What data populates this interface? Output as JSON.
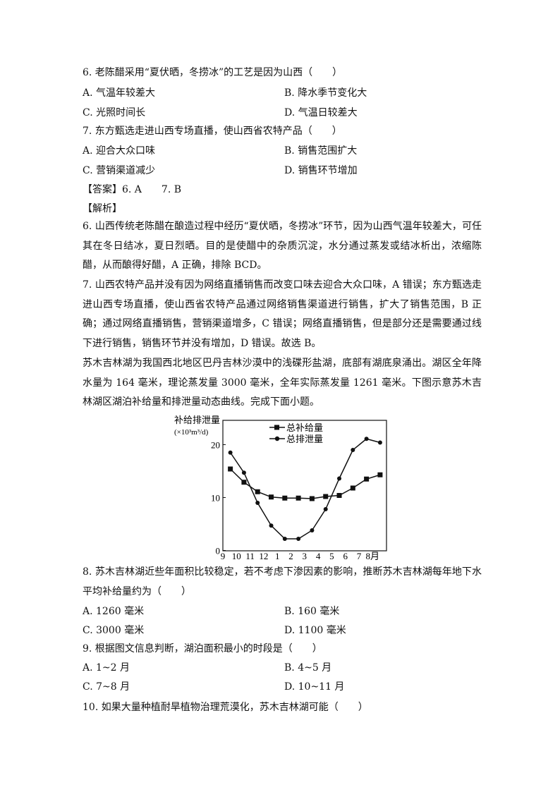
{
  "q6": {
    "stem": "6. 老陈醋采用“夏伏晒，冬捞冰”的工艺是因为山西（　　）",
    "A": "A.  气温年较差大",
    "B": "B.  降水季节变化大",
    "C": "C.  光照时间长",
    "D": "D.  气温日较差大"
  },
  "q7": {
    "stem": "7. 东方甄选走进山西专场直播，使山西省农特产品（　　）",
    "A": "A.  迎合大众口味",
    "B": "B.  销售范围扩大",
    "C": "C.  营销渠道减少",
    "D": "D.  销售环节增加"
  },
  "answer": "【答案】6. A　　7. B",
  "analysis_title": "【解析】",
  "analysis6": "6. 山西传统老陈醋在酿造过程中经历“夏伏晒，冬捞冰”环节，因为山西气温年较差大，可任其在冬日结冰，夏日烈晒。目的是使醋中的杂质沉淀，水分通过蒸发或结冰析出，浓缩陈醋，从而酿得好醋，A 正确，排除 BCD。",
  "analysis7": "7. 山西农特产品并没有因为网络直播销售而改变口味去迎合大众口味，A 错误；东方甄选走进山西专场直播，使山西省农特产品通过网络销售渠道进行销售，扩大了销售范围，B 正确；通过网络直播销售，营销渠道增多，C 错误；网络直播销售，但是部分还是需要通过线下进行销售，销售环节并没有增加，D 错误。故选 B。",
  "intro": "苏木吉林湖为我国西北地区巴丹吉林沙漠中的浅碟形盐湖，底部有湖底泉涌出。湖区全年降水量为 164 毫米，理论蒸发量 3000 毫米，全年实际蒸发量 1261 毫米。下图示意苏木吉林湖区湖泊补给量和排泄量动态曲线。完成下面小题。",
  "chart_data": {
    "type": "line",
    "ylabel": "补给排泄量",
    "yunit": "(×10³m³/d)",
    "categories": [
      "9",
      "10",
      "11",
      "12",
      "1",
      "2",
      "3",
      "4",
      "5",
      "6",
      "7",
      "8月"
    ],
    "yticks": [
      0,
      10,
      20
    ],
    "ylim": [
      0,
      24
    ],
    "grid": false,
    "legend": "top-center",
    "series": [
      {
        "name": "总补给量",
        "marker": "square",
        "values": [
          15.4,
          12.9,
          11.1,
          10.1,
          9.9,
          9.9,
          9.8,
          10.2,
          10.4,
          11.8,
          13.5,
          14.3
        ]
      },
      {
        "name": "总排泄量",
        "marker": "circle",
        "values": [
          18.5,
          14.7,
          9.0,
          4.7,
          2.2,
          2.2,
          3.8,
          7.8,
          13.6,
          19.0,
          21.1,
          20.4
        ]
      }
    ]
  },
  "q8": {
    "stem": "8. 苏木吉林湖近些年面积比较稳定，若不考虑下渗因素的影响，推断苏木吉林湖每年地下水平均补给量约为（　　）",
    "A": "A. 1260 毫米",
    "B": "B. 160 毫米",
    "C": "C. 3000 毫米",
    "D": "D. 1100 毫米"
  },
  "q9": {
    "stem": "9. 根据图文信息判断，湖泊面积最小的时段是（　　）",
    "A": "A. 1~2 月",
    "B": "B. 4~5 月",
    "C": "C. 7~8 月",
    "D": "D. 10~11 月"
  },
  "q10": {
    "stem": "10. 如果大量种植耐旱植物治理荒漠化，苏木吉林湖可能（　　）"
  }
}
